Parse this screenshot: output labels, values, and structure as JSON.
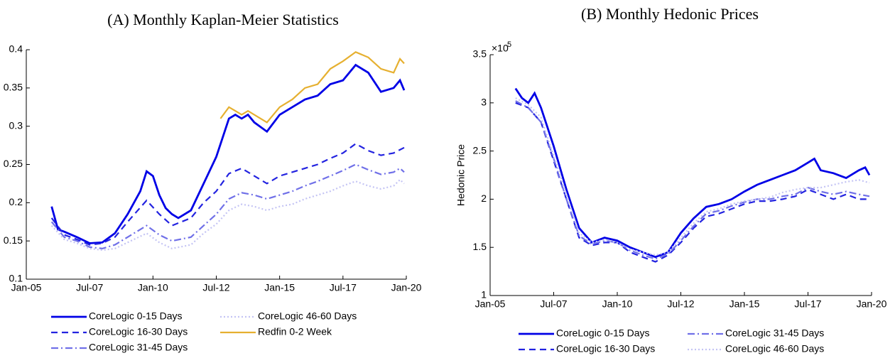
{
  "chart_data": [
    {
      "type": "line",
      "title": "(A) Monthly Kaplan-Meier Statistics",
      "xlim": [
        "2005-01",
        "2020-01"
      ],
      "xticks": [
        {
          "value": "2005-01",
          "label": "Jan-05"
        },
        {
          "value": "2007-07",
          "label": "Jul-07"
        },
        {
          "value": "2010-01",
          "label": "Jan-10"
        },
        {
          "value": "2012-07",
          "label": "Jul-12"
        },
        {
          "value": "2015-01",
          "label": "Jan-15"
        },
        {
          "value": "2017-07",
          "label": "Jul-17"
        },
        {
          "value": "2020-01",
          "label": "Jan-20"
        }
      ],
      "ylim": [
        0.1,
        0.4
      ],
      "yticks": [
        0.1,
        0.15,
        0.2,
        0.25,
        0.3,
        0.35,
        0.4
      ],
      "series": [
        {
          "name": "CoreLogic 0-15 Days",
          "color": "#0000e6",
          "line_style": "solid",
          "x": [
            "2006-01",
            "2006-04",
            "2006-07",
            "2007-01",
            "2007-07",
            "2008-01",
            "2008-07",
            "2009-01",
            "2009-07",
            "2009-10",
            "2010-01",
            "2010-04",
            "2010-07",
            "2010-10",
            "2011-01",
            "2011-07",
            "2012-01",
            "2012-07",
            "2013-01",
            "2013-04",
            "2013-07",
            "2013-10",
            "2014-01",
            "2014-07",
            "2015-01",
            "2015-07",
            "2016-01",
            "2016-07",
            "2017-01",
            "2017-07",
            "2018-01",
            "2018-07",
            "2019-01",
            "2019-07",
            "2019-10",
            "2019-12"
          ],
          "values": [
            0.195,
            0.165,
            0.162,
            0.155,
            0.147,
            0.148,
            0.16,
            0.185,
            0.215,
            0.241,
            0.235,
            0.21,
            0.193,
            0.185,
            0.18,
            0.19,
            0.225,
            0.26,
            0.31,
            0.315,
            0.31,
            0.315,
            0.305,
            0.293,
            0.315,
            0.325,
            0.335,
            0.34,
            0.355,
            0.36,
            0.38,
            0.37,
            0.345,
            0.35,
            0.36,
            0.347
          ]
        },
        {
          "name": "CoreLogic 16-30 Days",
          "color": "#2323e0",
          "line_style": "dashed",
          "x": [
            "2006-01",
            "2006-07",
            "2007-01",
            "2007-07",
            "2008-01",
            "2008-07",
            "2009-01",
            "2009-10",
            "2010-04",
            "2010-10",
            "2011-07",
            "2012-01",
            "2012-07",
            "2013-01",
            "2013-07",
            "2014-01",
            "2014-07",
            "2015-01",
            "2015-07",
            "2016-01",
            "2016-07",
            "2017-01",
            "2017-07",
            "2018-01",
            "2018-07",
            "2019-01",
            "2019-07",
            "2019-12"
          ],
          "values": [
            0.18,
            0.158,
            0.152,
            0.145,
            0.147,
            0.155,
            0.175,
            0.203,
            0.185,
            0.17,
            0.18,
            0.2,
            0.215,
            0.238,
            0.245,
            0.235,
            0.225,
            0.235,
            0.24,
            0.245,
            0.25,
            0.258,
            0.265,
            0.277,
            0.268,
            0.262,
            0.265,
            0.272
          ]
        },
        {
          "name": "CoreLogic 31-45 Days",
          "color": "#7070e8",
          "line_style": "dash-dot",
          "x": [
            "2006-01",
            "2006-07",
            "2007-01",
            "2007-07",
            "2008-01",
            "2008-07",
            "2009-01",
            "2009-10",
            "2010-04",
            "2010-10",
            "2011-07",
            "2012-01",
            "2012-07",
            "2013-01",
            "2013-07",
            "2014-01",
            "2014-07",
            "2015-01",
            "2015-07",
            "2016-01",
            "2016-07",
            "2017-01",
            "2017-07",
            "2018-01",
            "2018-07",
            "2019-01",
            "2019-07",
            "2019-10",
            "2019-12"
          ],
          "values": [
            0.175,
            0.155,
            0.15,
            0.142,
            0.14,
            0.145,
            0.155,
            0.17,
            0.158,
            0.15,
            0.155,
            0.17,
            0.185,
            0.205,
            0.213,
            0.21,
            0.205,
            0.21,
            0.215,
            0.222,
            0.228,
            0.235,
            0.242,
            0.25,
            0.243,
            0.237,
            0.24,
            0.245,
            0.24
          ]
        },
        {
          "name": "CoreLogic 46-60 Days",
          "color": "#c4c4f4",
          "line_style": "dotted",
          "x": [
            "2006-01",
            "2006-07",
            "2007-01",
            "2007-07",
            "2008-01",
            "2008-07",
            "2009-01",
            "2009-10",
            "2010-04",
            "2010-10",
            "2011-07",
            "2012-01",
            "2012-07",
            "2013-01",
            "2013-07",
            "2014-01",
            "2014-07",
            "2015-01",
            "2015-07",
            "2016-01",
            "2016-07",
            "2017-01",
            "2017-07",
            "2018-01",
            "2018-07",
            "2019-01",
            "2019-07",
            "2019-10",
            "2019-12"
          ],
          "values": [
            0.17,
            0.152,
            0.147,
            0.14,
            0.138,
            0.14,
            0.148,
            0.16,
            0.148,
            0.14,
            0.145,
            0.16,
            0.172,
            0.19,
            0.198,
            0.195,
            0.19,
            0.195,
            0.198,
            0.205,
            0.21,
            0.215,
            0.222,
            0.228,
            0.222,
            0.218,
            0.222,
            0.23,
            0.225
          ]
        },
        {
          "name": "Redfin 0-2 Week",
          "color": "#e6b030",
          "line_style": "solid",
          "x": [
            "2012-09",
            "2013-01",
            "2013-04",
            "2013-07",
            "2013-10",
            "2014-04",
            "2014-07",
            "2015-01",
            "2015-07",
            "2016-01",
            "2016-07",
            "2017-01",
            "2017-07",
            "2018-01",
            "2018-07",
            "2019-01",
            "2019-07",
            "2019-10",
            "2019-12"
          ],
          "values": [
            0.31,
            0.325,
            0.32,
            0.315,
            0.32,
            0.31,
            0.305,
            0.325,
            0.335,
            0.35,
            0.355,
            0.375,
            0.385,
            0.397,
            0.39,
            0.375,
            0.37,
            0.388,
            0.382
          ]
        }
      ]
    },
    {
      "type": "line",
      "title": "(B) Monthly Hedonic Prices",
      "ylabel": "Hedonic Price",
      "y_multiplier_base": "×10",
      "y_multiplier_exponent": "5",
      "xlim": [
        "2005-01",
        "2020-01"
      ],
      "xticks": [
        {
          "value": "2005-01",
          "label": "Jan-05"
        },
        {
          "value": "2007-07",
          "label": "Jul-07"
        },
        {
          "value": "2010-01",
          "label": "Jan-10"
        },
        {
          "value": "2012-07",
          "label": "Jul-12"
        },
        {
          "value": "2015-01",
          "label": "Jan-15"
        },
        {
          "value": "2017-07",
          "label": "Jul-17"
        },
        {
          "value": "2020-01",
          "label": "Jan-20"
        }
      ],
      "ylim": [
        1,
        3.5
      ],
      "yticks": [
        1,
        1.5,
        2,
        2.5,
        3,
        3.5
      ],
      "series": [
        {
          "name": "CoreLogic 0-15 Days",
          "color": "#0000e6",
          "line_style": "solid",
          "x": [
            "2006-01",
            "2006-04",
            "2006-07",
            "2006-10",
            "2007-01",
            "2007-07",
            "2008-01",
            "2008-07",
            "2009-01",
            "2009-07",
            "2010-01",
            "2010-07",
            "2011-01",
            "2011-07",
            "2012-01",
            "2012-07",
            "2013-01",
            "2013-07",
            "2014-01",
            "2014-07",
            "2015-01",
            "2015-07",
            "2016-01",
            "2016-07",
            "2017-01",
            "2017-07",
            "2017-10",
            "2018-01",
            "2018-07",
            "2019-01",
            "2019-07",
            "2019-10",
            "2019-12"
          ],
          "values": [
            3.15,
            3.05,
            3.0,
            3.1,
            2.95,
            2.55,
            2.1,
            1.7,
            1.55,
            1.6,
            1.57,
            1.5,
            1.45,
            1.4,
            1.45,
            1.65,
            1.8,
            1.92,
            1.95,
            2.0,
            2.08,
            2.15,
            2.2,
            2.25,
            2.3,
            2.38,
            2.42,
            2.3,
            2.27,
            2.22,
            2.3,
            2.33,
            2.25
          ]
        },
        {
          "name": "CoreLogic 16-30 Days",
          "color": "#2323e0",
          "line_style": "dashed",
          "x": [
            "2006-01",
            "2006-07",
            "2007-01",
            "2007-07",
            "2008-01",
            "2008-07",
            "2009-01",
            "2009-07",
            "2010-01",
            "2010-07",
            "2011-01",
            "2011-07",
            "2012-01",
            "2012-07",
            "2013-01",
            "2013-07",
            "2014-01",
            "2014-07",
            "2015-01",
            "2015-07",
            "2016-01",
            "2016-07",
            "2017-01",
            "2017-07",
            "2018-01",
            "2018-07",
            "2019-01",
            "2019-07",
            "2019-12"
          ],
          "values": [
            3.0,
            2.95,
            2.8,
            2.4,
            2.0,
            1.6,
            1.52,
            1.55,
            1.55,
            1.45,
            1.4,
            1.35,
            1.42,
            1.55,
            1.7,
            1.82,
            1.85,
            1.9,
            1.95,
            1.98,
            1.98,
            2.0,
            2.03,
            2.1,
            2.05,
            2.0,
            2.05,
            2.0,
            2.0
          ]
        },
        {
          "name": "CoreLogic 31-45 Days",
          "color": "#7070e8",
          "line_style": "dash-dot",
          "x": [
            "2006-01",
            "2006-07",
            "2007-01",
            "2007-07",
            "2008-01",
            "2008-07",
            "2009-01",
            "2009-07",
            "2010-01",
            "2010-07",
            "2011-01",
            "2011-07",
            "2012-01",
            "2012-07",
            "2013-01",
            "2013-07",
            "2014-01",
            "2014-07",
            "2015-01",
            "2015-07",
            "2016-01",
            "2016-07",
            "2017-01",
            "2017-07",
            "2018-01",
            "2018-07",
            "2019-01",
            "2019-07",
            "2019-12"
          ],
          "values": [
            3.02,
            2.95,
            2.8,
            2.42,
            2.0,
            1.62,
            1.53,
            1.57,
            1.55,
            1.47,
            1.42,
            1.38,
            1.43,
            1.57,
            1.72,
            1.85,
            1.88,
            1.93,
            1.97,
            2.0,
            2.0,
            2.03,
            2.05,
            2.12,
            2.08,
            2.05,
            2.08,
            2.05,
            2.03
          ]
        },
        {
          "name": "CoreLogic 46-60 Days",
          "color": "#c4c4f4",
          "line_style": "dotted",
          "x": [
            "2006-01",
            "2006-07",
            "2007-01",
            "2007-07",
            "2008-01",
            "2008-07",
            "2009-01",
            "2009-07",
            "2010-01",
            "2010-07",
            "2011-01",
            "2011-07",
            "2012-01",
            "2012-07",
            "2013-01",
            "2013-07",
            "2014-01",
            "2014-07",
            "2015-01",
            "2015-07",
            "2016-01",
            "2016-07",
            "2017-01",
            "2017-07",
            "2018-01",
            "2018-07",
            "2019-01",
            "2019-07",
            "2019-12"
          ],
          "values": [
            3.05,
            2.98,
            2.85,
            2.45,
            2.05,
            1.65,
            1.55,
            1.58,
            1.55,
            1.48,
            1.45,
            1.42,
            1.45,
            1.6,
            1.75,
            1.87,
            1.9,
            1.95,
            1.98,
            2.0,
            2.02,
            2.07,
            2.1,
            2.12,
            2.12,
            2.15,
            2.18,
            2.2,
            2.17
          ]
        }
      ]
    }
  ]
}
